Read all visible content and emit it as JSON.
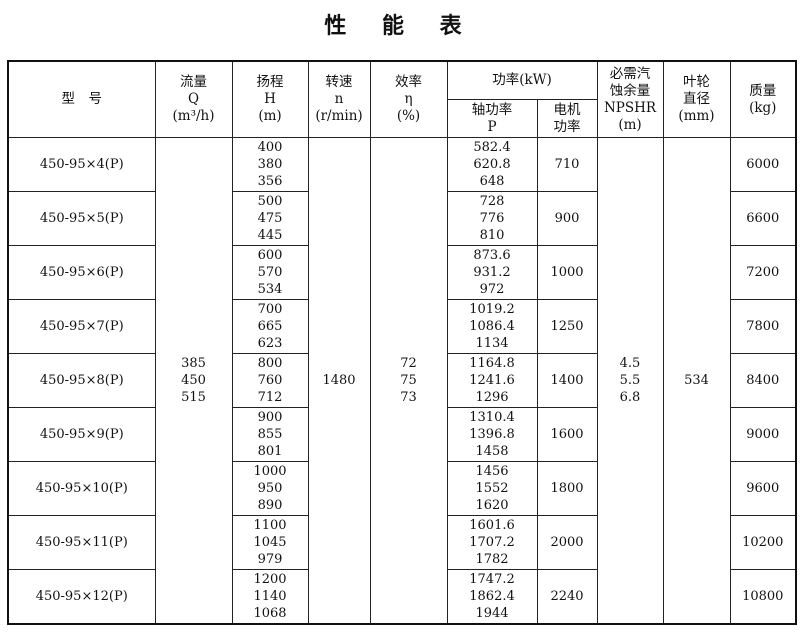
{
  "title": "性 能 表",
  "headers": {
    "model": "型　号",
    "flow": [
      "流量",
      "Q",
      "(m³/h)"
    ],
    "head": [
      "扬程",
      "H",
      "(m)"
    ],
    "speed": [
      "转速",
      "n",
      "(r/min)"
    ],
    "efficiency": [
      "效率",
      "η",
      "(%)"
    ],
    "power": "功率(kW)",
    "shaft_power": [
      "轴功率",
      "P"
    ],
    "motor_power": [
      "电机",
      "功率"
    ],
    "npshr": [
      "必需汽",
      "蚀余量",
      "NPSHR",
      "(m)"
    ],
    "impeller": [
      "叶轮",
      "直径",
      "(mm)"
    ],
    "mass": [
      "质量",
      "(kg)"
    ]
  },
  "shared": {
    "flow": "385\n450\n515",
    "speed": "1480",
    "efficiency": "72\n75\n73",
    "npshr": "4.5\n5.5\n6.8",
    "impeller": "534"
  },
  "rows": [
    {
      "model": "450-95×4(P)",
      "head": "400\n380\n356",
      "shaft": "582.4\n620.8\n648",
      "motor": "710",
      "mass": "6000"
    },
    {
      "model": "450-95×5(P)",
      "head": "500\n475\n445",
      "shaft": "728\n776\n810",
      "motor": "900",
      "mass": "6600"
    },
    {
      "model": "450-95×6(P)",
      "head": "600\n570\n534",
      "shaft": "873.6\n931.2\n972",
      "motor": "1000",
      "mass": "7200"
    },
    {
      "model": "450-95×7(P)",
      "head": "700\n665\n623",
      "shaft": "1019.2\n1086.4\n1134",
      "motor": "1250",
      "mass": "7800"
    },
    {
      "model": "450-95×8(P)",
      "head": "800\n760\n712",
      "shaft": "1164.8\n1241.6\n1296",
      "motor": "1400",
      "mass": "8400"
    },
    {
      "model": "450-95×9(P)",
      "head": "900\n855\n801",
      "shaft": "1310.4\n1396.8\n1458",
      "motor": "1600",
      "mass": "9000"
    },
    {
      "model": "450-95×10(P)",
      "head": "1000\n950\n890",
      "shaft": "1456\n1552\n1620",
      "motor": "1800",
      "mass": "9600"
    },
    {
      "model": "450-95×11(P)",
      "head": "1100\n1045\n979",
      "shaft": "1601.6\n1707.2\n1782",
      "motor": "2000",
      "mass": "10200"
    },
    {
      "model": "450-95×12(P)",
      "head": "1200\n1140\n1068",
      "shaft": "1747.2\n1862.4\n1944",
      "motor": "2240",
      "mass": "10800"
    }
  ]
}
